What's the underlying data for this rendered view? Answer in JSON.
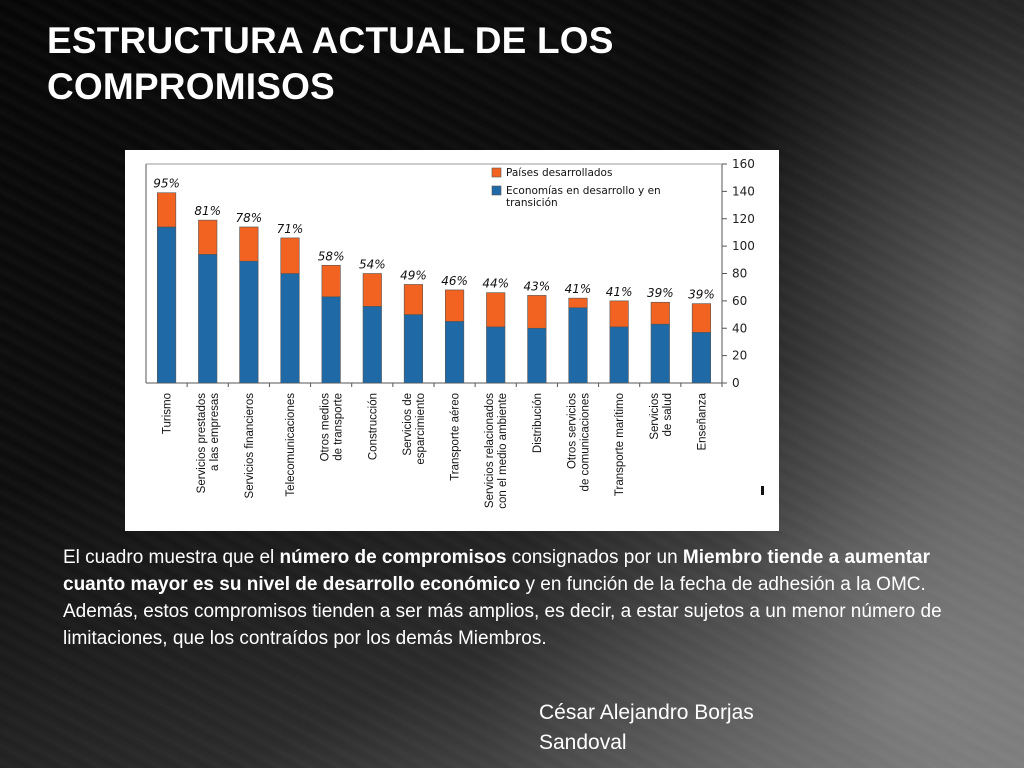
{
  "slide": {
    "title": "ESTRUCTURA ACTUAL DE LOS COMPROMISOS",
    "paragraph": {
      "p1": "El cuadro  muestra que el ",
      "b1": "número de compromisos",
      "p2": " consignados por un ",
      "b2": "Miembro tiende a aumentar cuanto mayor es su nivel de desarrollo económico",
      "p3": " y en función de la fecha de adhesión a la OMC.  Además, estos compromisos tienden a ser más amplios, es decir, a estar sujetos a un menor número de limitaciones, que los contraídos por los demás Miembros."
    },
    "author_line1": "César Alejandro Borjas",
    "author_line2": "Sandoval"
  },
  "chart_data": {
    "type": "bar",
    "stacked": true,
    "categories": [
      "Turismo",
      "Servicios prestados a las empresas",
      "Servicios financieros",
      "Telecomunicaciones",
      "Otros medios de transporte",
      "Construcción",
      "Servicios de esparcimiento",
      "Transporte aéreo",
      "Servicios relacionados con el medio ambiente",
      "Distribución",
      "Otros servicios de comunicaciones",
      "Transporte marítimo",
      "Servicios de salud",
      "Enseñanza"
    ],
    "series": [
      {
        "name": "Economías en desarrollo y en transición",
        "color": "#1f6aa6",
        "values": [
          114,
          94,
          89,
          80,
          63,
          56,
          50,
          45,
          41,
          40,
          55,
          41,
          43,
          37
        ]
      },
      {
        "name": "Países desarrollados",
        "color": "#f26322",
        "values": [
          25,
          25,
          25,
          26,
          23,
          24,
          22,
          23,
          25,
          24,
          7,
          19,
          16,
          21
        ]
      }
    ],
    "data_labels": [
      "95%",
      "81%",
      "78%",
      "71%",
      "58%",
      "54%",
      "49%",
      "46%",
      "44%",
      "43%",
      "41%",
      "41%",
      "39%",
      "39%"
    ],
    "ylim": [
      0,
      160
    ],
    "yticks": [
      0,
      20,
      40,
      60,
      80,
      100,
      120,
      140,
      160
    ],
    "y_axis_side": "right",
    "legend_position": "top",
    "grid": false
  }
}
